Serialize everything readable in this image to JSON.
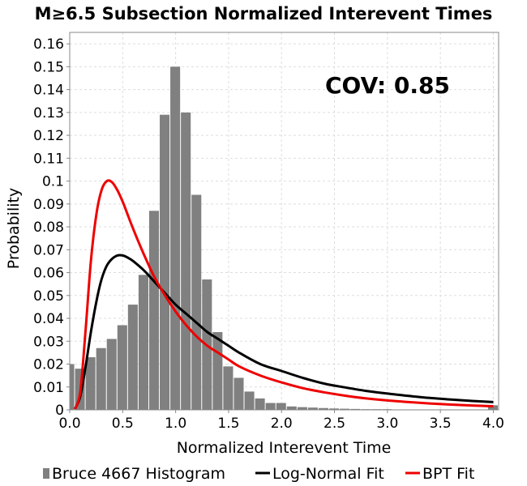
{
  "chart_data": {
    "type": "bar",
    "title": "M≥6.5 Subsection Normalized Interevent Times",
    "xlabel": "Normalized Interevent Time",
    "ylabel": "Probability",
    "xlim": [
      0,
      4.05
    ],
    "ylim": [
      0,
      0.165
    ],
    "x_ticks": [
      "0.0",
      "0.5",
      "1.0",
      "1.5",
      "2.0",
      "2.5",
      "3.0",
      "3.5",
      "4.0"
    ],
    "y_ticks": [
      "0",
      "0.01",
      "0.02",
      "0.03",
      "0.04",
      "0.05",
      "0.06",
      "0.07",
      "0.08",
      "0.09",
      "0.1",
      "0.11",
      "0.12",
      "0.13",
      "0.14",
      "0.15",
      "0.16"
    ],
    "grid": true,
    "annotation": "COV: 0.85",
    "legend_position": "bottom",
    "bin_width": 0.1,
    "histogram": {
      "name": "Bruce 4667 Histogram",
      "color": "#808080",
      "centers": [
        0.0,
        0.1,
        0.2,
        0.3,
        0.4,
        0.5,
        0.6,
        0.7,
        0.8,
        0.9,
        1.0,
        1.1,
        1.2,
        1.3,
        1.4,
        1.5,
        1.6,
        1.7,
        1.8,
        1.9,
        2.0,
        2.1,
        2.2,
        2.3,
        2.4,
        2.5,
        2.6,
        2.7,
        2.8,
        2.9,
        3.0,
        3.1,
        3.2,
        3.3,
        3.4,
        3.5,
        3.6,
        3.7,
        3.8,
        3.9,
        4.0
      ],
      "values": [
        0.02,
        0.018,
        0.023,
        0.027,
        0.031,
        0.037,
        0.046,
        0.059,
        0.087,
        0.129,
        0.15,
        0.13,
        0.094,
        0.057,
        0.034,
        0.019,
        0.014,
        0.008,
        0.005,
        0.003,
        0.003,
        0.0015,
        0.0012,
        0.001,
        0.0008,
        0.0006,
        0.0005,
        0.0004,
        0.0003,
        0.0003,
        0.0003,
        0.0002,
        0.0002,
        0.0002,
        0.0002,
        0.0002,
        0.0002,
        0.0002,
        0.0002,
        0.0002,
        0.002
      ]
    },
    "series": [
      {
        "name": "Log-Normal Fit",
        "color": "#000000",
        "x": [
          0.05,
          0.1,
          0.15,
          0.2,
          0.25,
          0.3,
          0.35,
          0.4,
          0.45,
          0.5,
          0.55,
          0.6,
          0.7,
          0.8,
          0.9,
          1.0,
          1.1,
          1.2,
          1.3,
          1.4,
          1.5,
          1.6,
          1.8,
          2.0,
          2.2,
          2.4,
          2.6,
          2.8,
          3.0,
          3.2,
          3.4,
          3.6,
          3.8,
          4.0
        ],
        "y": [
          0.0005,
          0.006,
          0.019,
          0.034,
          0.047,
          0.057,
          0.063,
          0.066,
          0.0675,
          0.0675,
          0.0665,
          0.065,
          0.061,
          0.056,
          0.051,
          0.046,
          0.042,
          0.038,
          0.034,
          0.031,
          0.028,
          0.025,
          0.02,
          0.017,
          0.014,
          0.0115,
          0.0098,
          0.0083,
          0.0071,
          0.0061,
          0.0052,
          0.0045,
          0.0039,
          0.0034
        ]
      },
      {
        "name": "BPT Fit",
        "color": "#ee0000",
        "x": [
          0.05,
          0.1,
          0.15,
          0.2,
          0.25,
          0.3,
          0.35,
          0.4,
          0.45,
          0.5,
          0.55,
          0.6,
          0.7,
          0.8,
          0.9,
          1.0,
          1.1,
          1.2,
          1.3,
          1.4,
          1.5,
          1.6,
          1.8,
          2.0,
          2.2,
          2.4,
          2.6,
          2.8,
          3.0,
          3.2,
          3.4,
          3.6,
          3.8,
          4.0
        ],
        "y": [
          0.0003,
          0.008,
          0.035,
          0.065,
          0.085,
          0.096,
          0.1,
          0.0995,
          0.096,
          0.091,
          0.085,
          0.079,
          0.068,
          0.058,
          0.05,
          0.043,
          0.037,
          0.032,
          0.028,
          0.025,
          0.022,
          0.019,
          0.015,
          0.012,
          0.0095,
          0.0077,
          0.0062,
          0.005,
          0.0041,
          0.0034,
          0.0028,
          0.0023,
          0.0019,
          0.0016
        ]
      }
    ]
  }
}
